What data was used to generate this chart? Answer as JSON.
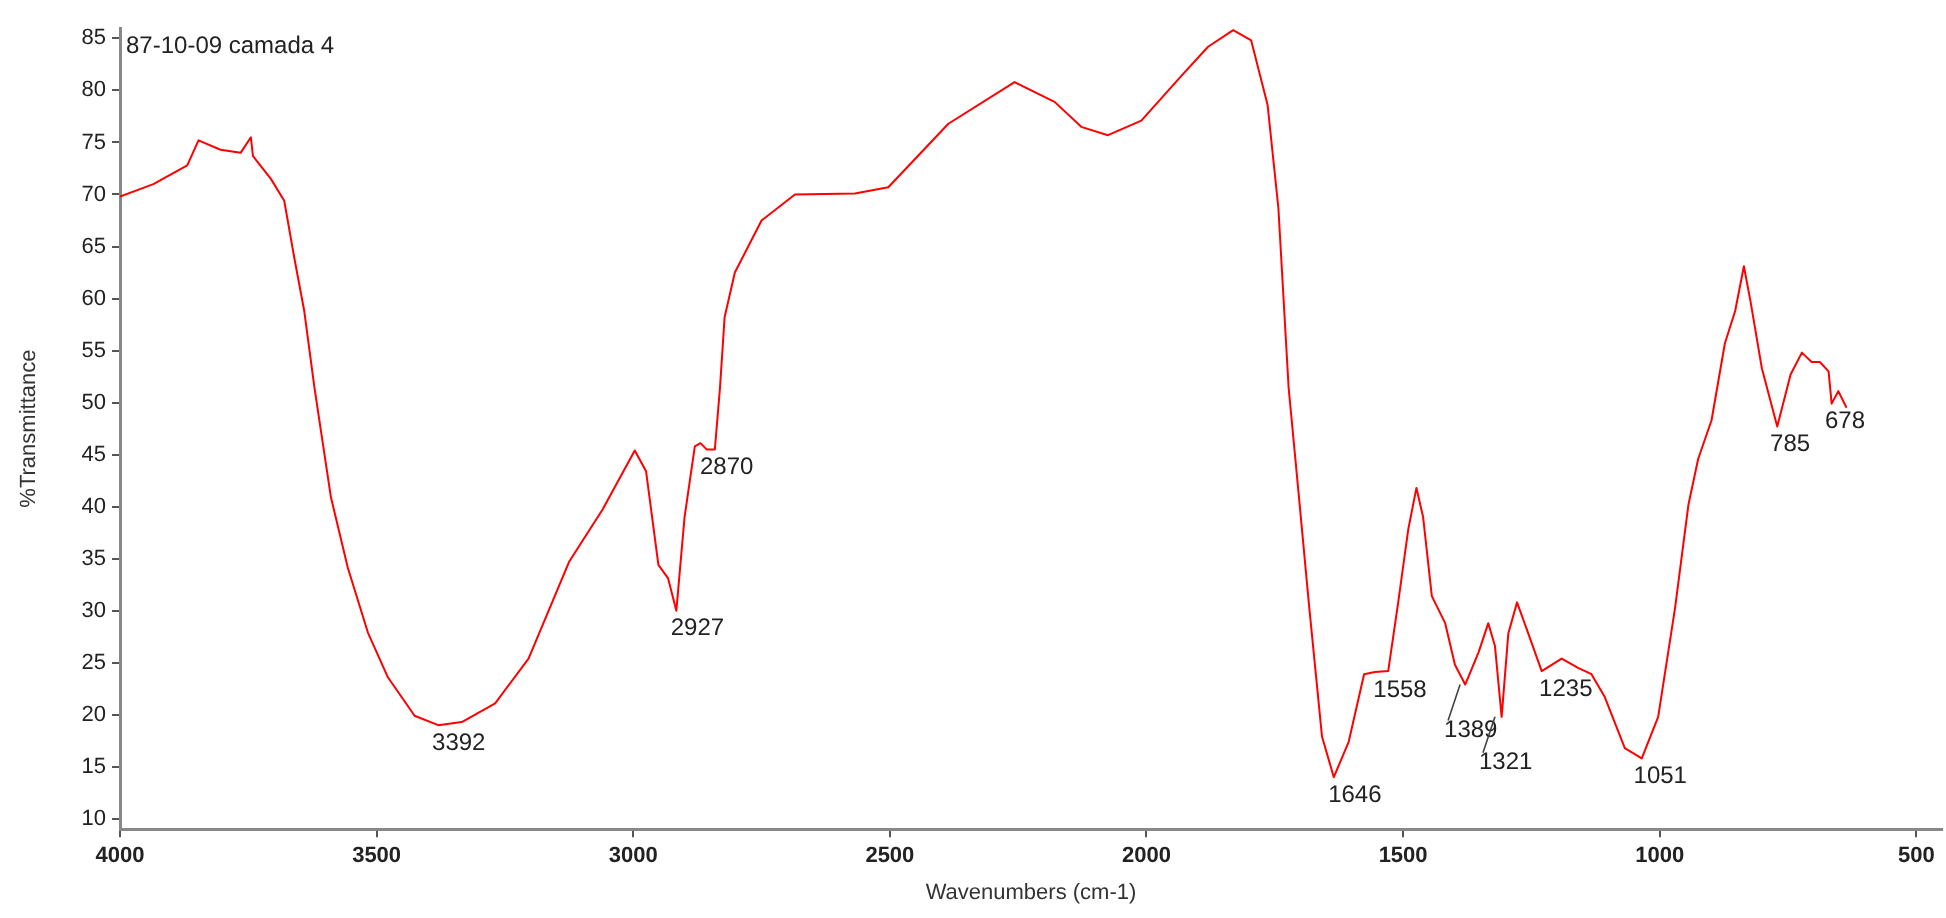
{
  "chart_data": {
    "type": "line",
    "title": "87-10-09 camada 4",
    "xlabel": "Wavenumbers (cm-1)",
    "ylabel": "%Transmittance",
    "series": [
      {
        "color": "#ff0000",
        "x": [
          4000,
          3935,
          3869,
          3847,
          3804,
          3765,
          3745,
          3741,
          3706,
          3680,
          3660,
          3641,
          3621,
          3589,
          3556,
          3517,
          3478,
          3426,
          3380,
          3334,
          3269,
          3204,
          3125,
          3060,
          2997,
          2975,
          2951,
          2932,
          2916,
          2900,
          2880,
          2869,
          2857,
          2841,
          2831,
          2822,
          2802,
          2750,
          2685,
          2568,
          2503,
          2386,
          2257,
          2179,
          2127,
          2075,
          2010,
          1932,
          1880,
          1831,
          1796,
          1764,
          1743,
          1723,
          1704,
          1684,
          1658,
          1635,
          1606,
          1576,
          1555,
          1529,
          1509,
          1490,
          1474,
          1461,
          1444,
          1418,
          1399,
          1379,
          1353,
          1334,
          1321,
          1308,
          1295,
          1278,
          1256,
          1230,
          1191,
          1159,
          1133,
          1107,
          1068,
          1035,
          1003,
          970,
          944,
          925,
          899,
          873,
          853,
          836,
          823,
          801,
          771,
          745,
          723,
          704,
          688,
          671,
          665,
          652,
          636
        ],
        "values": [
          69.8,
          71.0,
          72.8,
          75.2,
          74.3,
          74.0,
          75.5,
          73.7,
          71.5,
          69.4,
          63.8,
          58.8,
          51.4,
          40.9,
          34.1,
          27.9,
          23.6,
          19.9,
          19.0,
          19.3,
          21.1,
          25.4,
          34.7,
          39.7,
          45.4,
          43.4,
          34.4,
          33.1,
          30.0,
          39.0,
          45.8,
          46.1,
          45.5,
          45.5,
          51.4,
          58.2,
          62.5,
          67.5,
          70.0,
          70.1,
          70.7,
          76.8,
          80.8,
          78.9,
          76.5,
          75.7,
          77.1,
          81.4,
          84.2,
          85.8,
          84.8,
          78.6,
          68.7,
          51.4,
          41.5,
          30.9,
          17.9,
          14.0,
          17.4,
          23.9,
          24.1,
          24.2,
          31.0,
          37.8,
          41.8,
          39.0,
          31.4,
          28.8,
          24.8,
          22.9,
          26.0,
          28.8,
          26.6,
          19.8,
          27.8,
          30.8,
          27.8,
          24.2,
          25.4,
          24.5,
          23.9,
          21.7,
          16.8,
          15.8,
          19.8,
          30.3,
          40.2,
          44.6,
          48.3,
          55.7,
          58.8,
          63.1,
          59.7,
          53.3,
          47.7,
          52.7,
          54.8,
          53.9,
          53.9,
          53.0,
          49.9,
          51.1,
          49.5
        ]
      }
    ],
    "xlim": [
      4000,
      450
    ],
    "xticks": [
      4000,
      3500,
      3000,
      2500,
      2000,
      1500,
      1000,
      500
    ],
    "ylim": [
      9,
      86
    ],
    "yticks": [
      10,
      15,
      20,
      25,
      30,
      35,
      40,
      45,
      50,
      55,
      60,
      65,
      70,
      75,
      80,
      85
    ],
    "grid": false,
    "legend": false,
    "marker": "none",
    "line_style": "solid",
    "annotations": [
      {
        "text": "3392",
        "x": 3392,
        "y": 19.0
      },
      {
        "text": "2927",
        "x": 2927,
        "y": 30.0
      },
      {
        "text": "2870",
        "x": 2870,
        "y": 45.5
      },
      {
        "text": "1646",
        "x": 1646,
        "y": 14.0
      },
      {
        "text": "1558",
        "x": 1558,
        "y": 24.1
      },
      {
        "text": "1389",
        "x": 1389,
        "y": 22.9
      },
      {
        "text": "1321",
        "x": 1321,
        "y": 19.8
      },
      {
        "text": "1235",
        "x": 1235,
        "y": 24.2
      },
      {
        "text": "1051",
        "x": 1051,
        "y": 15.8
      },
      {
        "text": "785",
        "x": 785,
        "y": 47.7
      },
      {
        "text": "678",
        "x": 678,
        "y": 49.9
      }
    ]
  }
}
